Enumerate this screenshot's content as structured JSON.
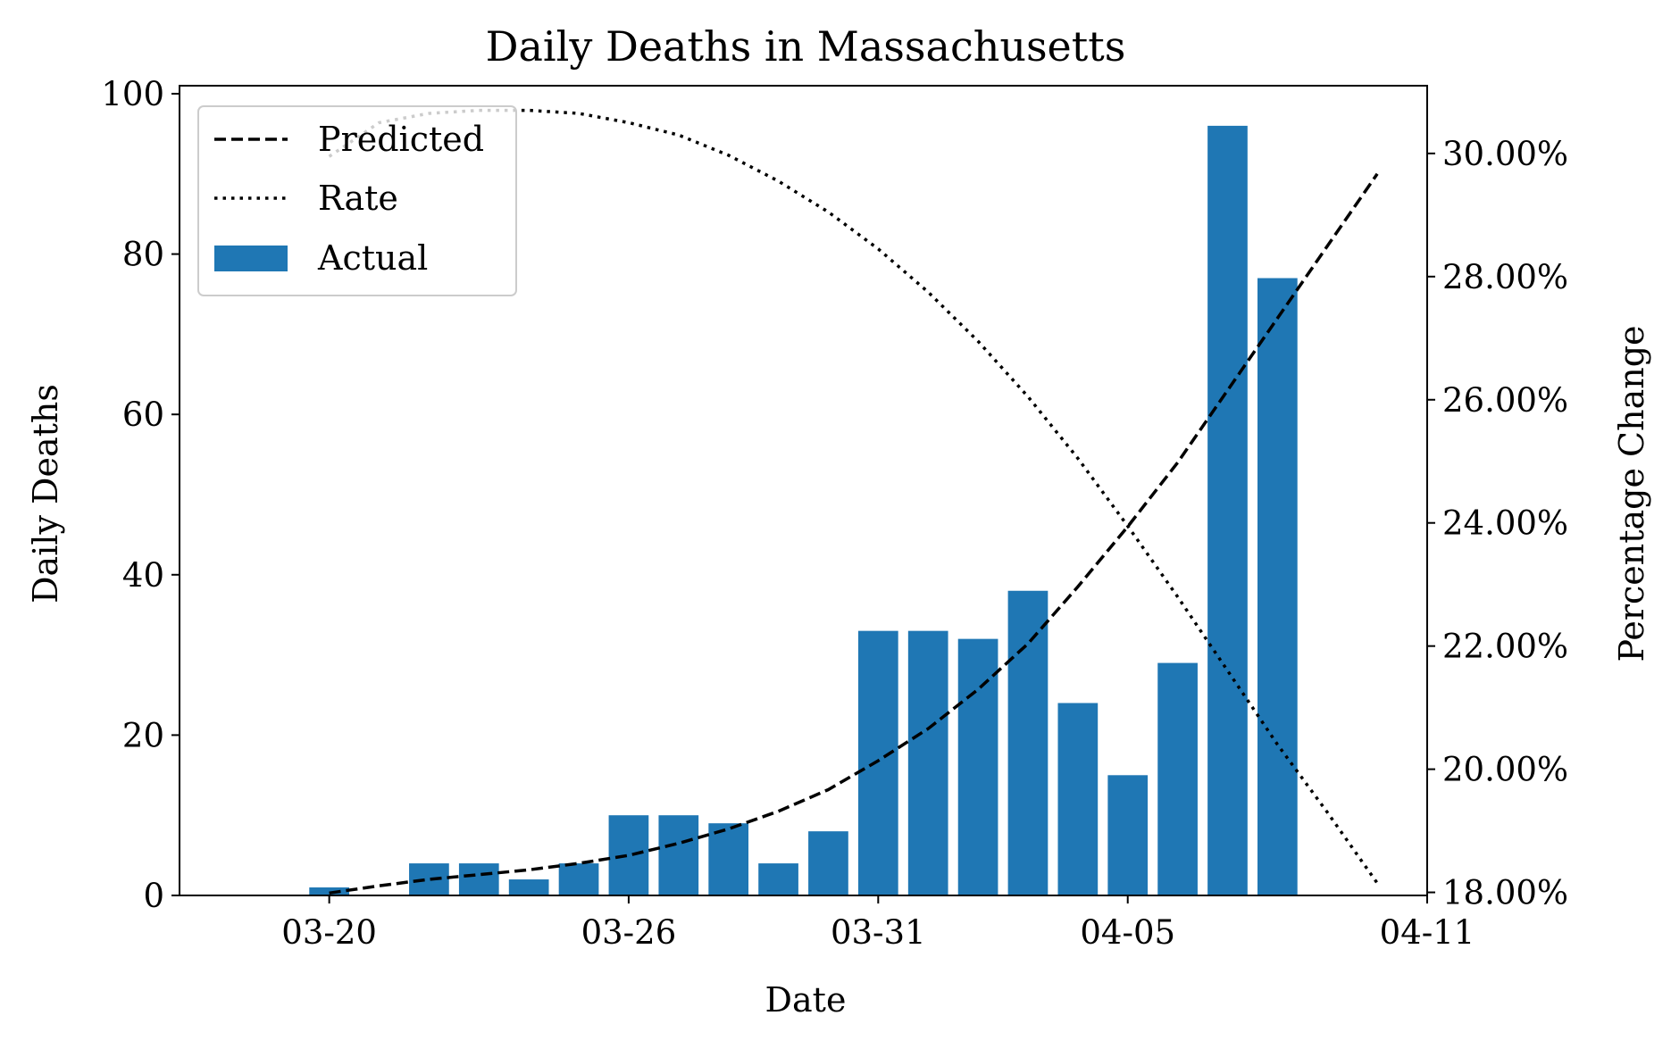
{
  "chart_data": {
    "type": "bar",
    "title": "Daily Deaths in Massachusetts",
    "xlabel": "Date",
    "ylabel": "Daily Deaths",
    "y2label": "Percentage Change",
    "x_range": [
      "2020-03-17",
      "2020-04-11"
    ],
    "x_ticks": [
      "03-20",
      "03-26",
      "03-31",
      "04-05",
      "04-11"
    ],
    "y_ticks": [
      "0",
      "20",
      "40",
      "60",
      "80",
      "100"
    ],
    "y2_ticks": [
      "18.00%",
      "20.00%",
      "22.00%",
      "24.00%",
      "26.00%",
      "28.00%",
      "30.00%"
    ],
    "ylim": [
      0,
      101
    ],
    "y2lim": [
      17.95,
      31.1
    ],
    "grid": false,
    "legend": {
      "placement": "top-left",
      "entries": [
        {
          "label": "Predicted",
          "style": "dashed"
        },
        {
          "label": "Rate",
          "style": "dotted"
        },
        {
          "label": "Actual",
          "style": "bar"
        }
      ]
    },
    "colors": {
      "bar": "#1f77b4",
      "line": "#000000"
    },
    "series": [
      {
        "name": "Actual",
        "kind": "bar",
        "x": [
          "2020-03-20",
          "2020-03-21",
          "2020-03-22",
          "2020-03-23",
          "2020-03-24",
          "2020-03-25",
          "2020-03-26",
          "2020-03-27",
          "2020-03-28",
          "2020-03-29",
          "2020-03-30",
          "2020-03-31",
          "2020-04-01",
          "2020-04-02",
          "2020-04-03",
          "2020-04-04",
          "2020-04-05",
          "2020-04-06",
          "2020-04-07",
          "2020-04-08"
        ],
        "values": [
          1,
          0,
          4,
          4,
          2,
          4,
          10,
          10,
          9,
          4,
          8,
          33,
          33,
          32,
          38,
          24,
          15,
          29,
          96,
          77
        ]
      },
      {
        "name": "Predicted",
        "kind": "line",
        "axis": "left",
        "x": [
          "2020-03-20",
          "2020-03-21",
          "2020-03-22",
          "2020-03-23",
          "2020-03-24",
          "2020-03-25",
          "2020-03-26",
          "2020-03-27",
          "2020-03-28",
          "2020-03-29",
          "2020-03-30",
          "2020-03-31",
          "2020-04-01",
          "2020-04-02",
          "2020-04-03",
          "2020-04-04",
          "2020-04-05",
          "2020-04-06",
          "2020-04-07",
          "2020-04-08",
          "2020-04-09",
          "2020-04-10"
        ],
        "values": [
          0.3,
          1.2,
          2.0,
          2.6,
          3.2,
          4.0,
          5.0,
          6.5,
          8.3,
          10.5,
          13.2,
          16.8,
          20.8,
          25.7,
          31.4,
          38.5,
          46.0,
          54.0,
          63.0,
          72.0,
          81.0,
          90.0
        ]
      },
      {
        "name": "Rate",
        "kind": "line",
        "axis": "right",
        "x": [
          "2020-03-20",
          "2020-03-21",
          "2020-03-22",
          "2020-03-23",
          "2020-03-24",
          "2020-03-25",
          "2020-03-26",
          "2020-03-27",
          "2020-03-28",
          "2020-03-29",
          "2020-03-30",
          "2020-03-31",
          "2020-04-01",
          "2020-04-02",
          "2020-04-03",
          "2020-04-04",
          "2020-04-05",
          "2020-04-06",
          "2020-04-07",
          "2020-04-08",
          "2020-04-09",
          "2020-04-10"
        ],
        "values": [
          29.95,
          30.5,
          30.65,
          30.7,
          30.7,
          30.65,
          30.5,
          30.3,
          29.97,
          29.55,
          29.05,
          28.45,
          27.75,
          26.95,
          26.05,
          25.05,
          23.95,
          22.8,
          21.6,
          20.4,
          19.3,
          18.15
        ]
      }
    ]
  }
}
